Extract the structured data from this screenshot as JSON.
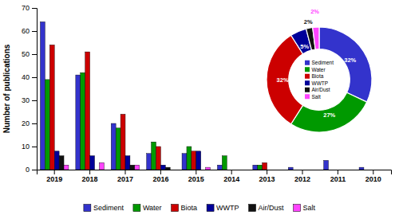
{
  "chart_data": [
    {
      "type": "bar",
      "categories": [
        "2019",
        "2018",
        "2017",
        "2016",
        "2015",
        "2014",
        "2013",
        "2012",
        "2011",
        "2010"
      ],
      "series": [
        {
          "name": "Sediment",
          "color": "#3333cc",
          "values": [
            64,
            41,
            20,
            7,
            7,
            2,
            2,
            1,
            4,
            1
          ]
        },
        {
          "name": "Water",
          "color": "#009900",
          "values": [
            39,
            42,
            18,
            12,
            10,
            6,
            2,
            0,
            0,
            0
          ]
        },
        {
          "name": "Biota",
          "color": "#cc0000",
          "values": [
            54,
            51,
            24,
            10,
            8,
            0,
            3,
            0,
            0,
            0
          ]
        },
        {
          "name": "WWTP",
          "color": "#000099",
          "values": [
            8,
            6,
            6,
            2,
            8,
            0,
            0,
            0,
            0,
            0
          ]
        },
        {
          "name": "Air/Dust",
          "color": "#111111",
          "values": [
            6,
            0,
            2,
            1,
            0,
            0,
            0,
            0,
            0,
            0
          ]
        },
        {
          "name": "Salt",
          "color": "#ff44ff",
          "values": [
            2,
            3,
            2,
            0,
            1,
            0,
            0,
            0,
            0,
            0
          ]
        }
      ],
      "ylabel": "Number of publications",
      "ylim": [
        0,
        70
      ],
      "yticks": [
        0,
        10,
        20,
        30,
        40,
        50,
        60,
        70
      ],
      "legend": "bottom"
    },
    {
      "type": "pie",
      "categories": [
        "Sediment",
        "Water",
        "Biota",
        "WWTP",
        "Air/Dust",
        "Salt"
      ],
      "values": [
        32,
        27,
        32,
        5,
        2,
        2
      ],
      "value_labels": [
        "32%",
        "27%",
        "32%",
        "5%",
        "2%",
        "2%"
      ],
      "colors": [
        "#3333cc",
        "#009900",
        "#cc0000",
        "#000099",
        "#111111",
        "#ff44ff"
      ],
      "data_labels": true,
      "legend": "center"
    }
  ]
}
